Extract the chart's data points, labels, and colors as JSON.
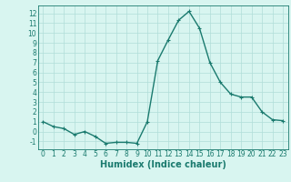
{
  "x": [
    0,
    1,
    2,
    3,
    4,
    5,
    6,
    7,
    8,
    9,
    10,
    11,
    12,
    13,
    14,
    15,
    16,
    17,
    18,
    19,
    20,
    21,
    22,
    23
  ],
  "y": [
    1,
    0.5,
    0.3,
    -0.3,
    0.0,
    -0.5,
    -1.2,
    -1.1,
    -1.1,
    -1.2,
    1.0,
    7.2,
    9.3,
    11.3,
    12.2,
    10.5,
    7.0,
    5.0,
    3.8,
    3.5,
    3.5,
    2.0,
    1.2,
    1.1
  ],
  "line_color": "#1a7a6e",
  "marker": "+",
  "marker_size": 3,
  "marker_color": "#1a7a6e",
  "bg_color": "#d8f5f0",
  "grid_color": "#b0ddd8",
  "xlabel": "Humidex (Indice chaleur)",
  "xlabel_fontsize": 7,
  "xlabel_color": "#1a7a6e",
  "tick_color": "#1a7a6e",
  "ylim": [
    -1.8,
    12.8
  ],
  "xlim": [
    -0.5,
    23.5
  ],
  "yticks": [
    -1,
    0,
    1,
    2,
    3,
    4,
    5,
    6,
    7,
    8,
    9,
    10,
    11,
    12
  ],
  "xticks": [
    0,
    1,
    2,
    3,
    4,
    5,
    6,
    7,
    8,
    9,
    10,
    11,
    12,
    13,
    14,
    15,
    16,
    17,
    18,
    19,
    20,
    21,
    22,
    23
  ],
  "tick_fontsize": 5.5,
  "line_width": 1.0
}
